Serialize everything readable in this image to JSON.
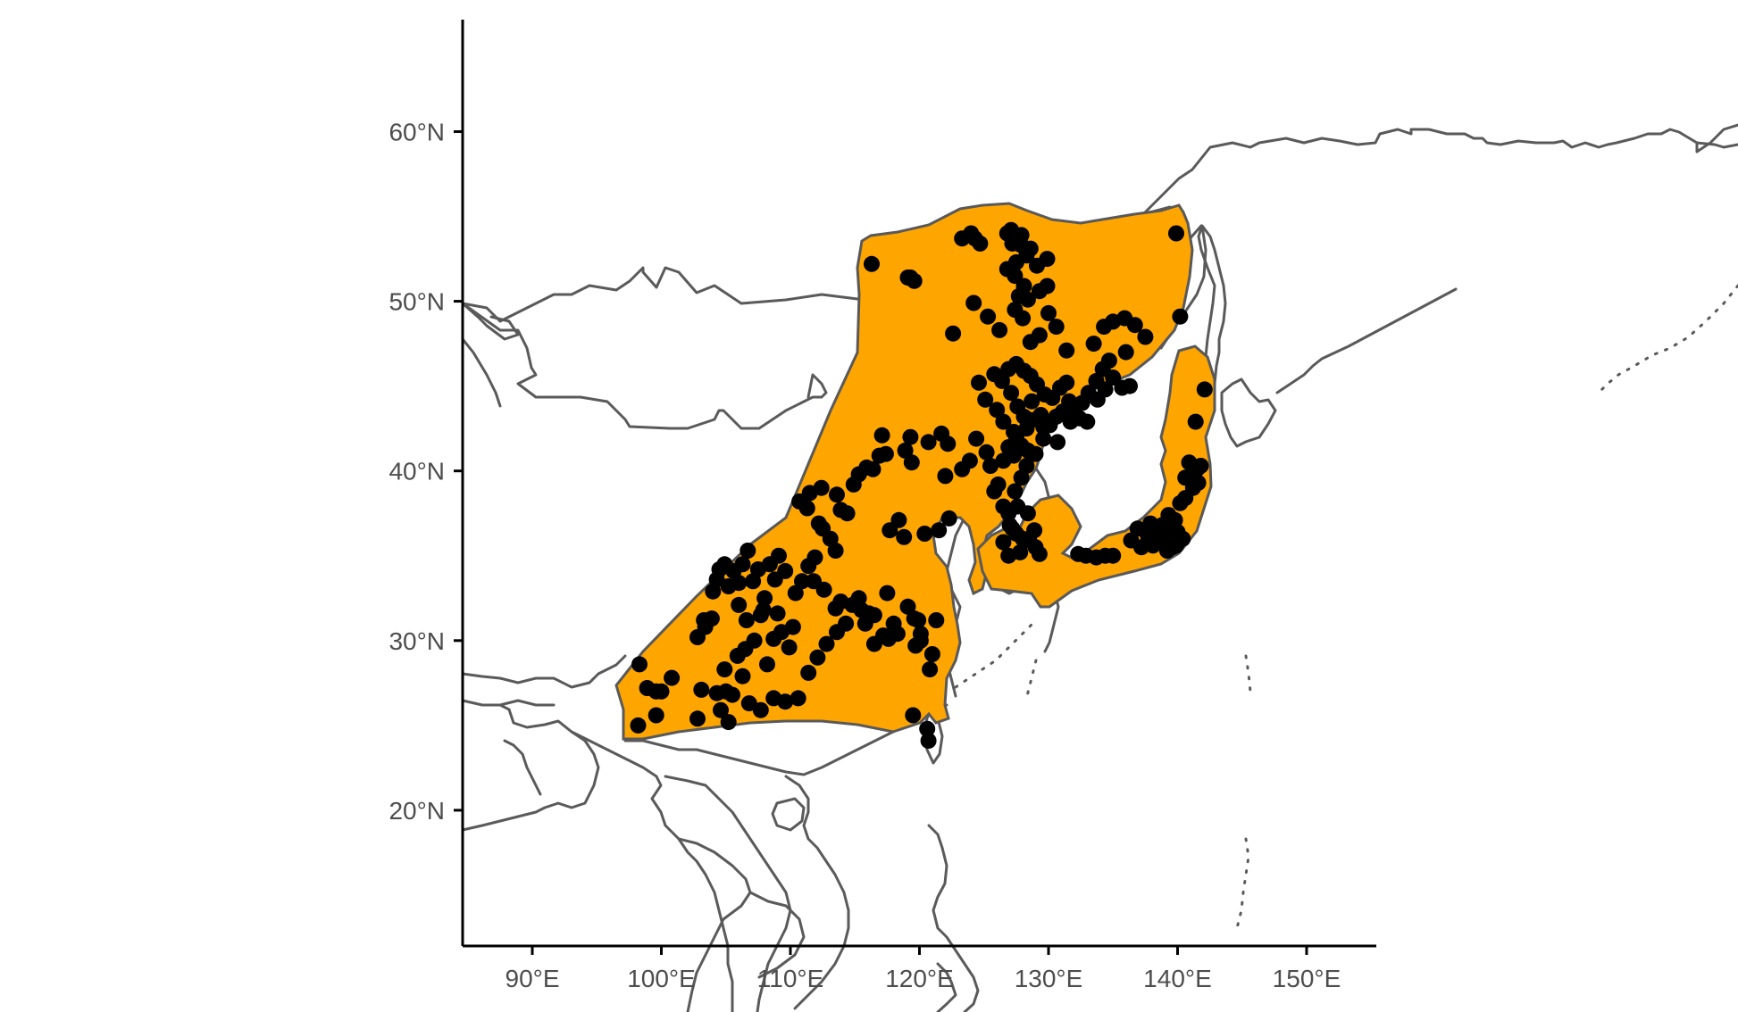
{
  "map": {
    "x_ticks": [
      {
        "lon": 90,
        "label": "90°E"
      },
      {
        "lon": 100,
        "label": "100°E"
      },
      {
        "lon": 110,
        "label": "110°E"
      },
      {
        "lon": 120,
        "label": "120°E"
      },
      {
        "lon": 130,
        "label": "130°E"
      },
      {
        "lon": 140,
        "label": "140°E"
      },
      {
        "lon": 150,
        "label": "150°E"
      }
    ],
    "y_ticks": [
      {
        "lat": 20,
        "label": "20°N"
      },
      {
        "lat": 30,
        "label": "30°N"
      },
      {
        "lat": 40,
        "label": "40°N"
      },
      {
        "lat": 50,
        "label": "50°N"
      },
      {
        "lat": 60,
        "label": "60°N"
      }
    ],
    "lon_range": [
      84.6,
      155.4
    ],
    "lat_range": [
      12,
      66.6
    ],
    "colors": {
      "range_fill": "#FFA500",
      "range_outline": "#595959",
      "points": "#000000",
      "borders": "#595959"
    },
    "occurrence_points": [
      [
        98.2,
        25.0
      ],
      [
        98.3,
        28.6
      ],
      [
        99.6,
        25.6
      ],
      [
        98.9,
        27.2
      ],
      [
        100.0,
        27.0
      ],
      [
        100.8,
        27.8
      ],
      [
        99.6,
        27.0
      ],
      [
        102.8,
        25.4
      ],
      [
        103.1,
        27.1
      ],
      [
        103.4,
        30.8
      ],
      [
        104.3,
        26.9
      ],
      [
        104.6,
        25.9
      ],
      [
        105.0,
        27.0
      ],
      [
        105.2,
        25.2
      ],
      [
        105.5,
        26.8
      ],
      [
        104.9,
        28.3
      ],
      [
        103.9,
        31.3
      ],
      [
        103.3,
        31.2
      ],
      [
        102.8,
        30.2
      ],
      [
        104.0,
        32.9
      ],
      [
        104.3,
        33.6
      ],
      [
        104.5,
        34.2
      ],
      [
        104.9,
        34.5
      ],
      [
        105.2,
        33.2
      ],
      [
        105.6,
        34.1
      ],
      [
        106.0,
        33.4
      ],
      [
        106.3,
        34.5
      ],
      [
        106.7,
        35.3
      ],
      [
        107.1,
        33.5
      ],
      [
        107.5,
        34.2
      ],
      [
        108.0,
        32.5
      ],
      [
        108.4,
        34.5
      ],
      [
        108.8,
        33.6
      ],
      [
        109.1,
        35.0
      ],
      [
        109.6,
        34.1
      ],
      [
        106.0,
        32.1
      ],
      [
        106.6,
        31.2
      ],
      [
        107.2,
        30.0
      ],
      [
        107.7,
        31.5
      ],
      [
        108.2,
        28.6
      ],
      [
        108.7,
        30.1
      ],
      [
        109.3,
        30.5
      ],
      [
        109.9,
        29.6
      ],
      [
        110.2,
        30.8
      ],
      [
        110.9,
        33.5
      ],
      [
        111.4,
        34.4
      ],
      [
        111.9,
        34.9
      ],
      [
        112.5,
        36.6
      ],
      [
        113.1,
        36.0
      ],
      [
        113.5,
        35.3
      ],
      [
        112.2,
        36.9
      ],
      [
        111.3,
        37.8
      ],
      [
        110.7,
        38.2
      ],
      [
        111.5,
        38.7
      ],
      [
        112.4,
        39.0
      ],
      [
        113.6,
        38.6
      ],
      [
        113.9,
        37.7
      ],
      [
        114.4,
        37.5
      ],
      [
        114.9,
        39.2
      ],
      [
        115.3,
        39.8
      ],
      [
        115.9,
        40.2
      ],
      [
        116.4,
        40.1
      ],
      [
        116.9,
        40.9
      ],
      [
        117.4,
        41.0
      ],
      [
        117.1,
        42.1
      ],
      [
        118.9,
        41.2
      ],
      [
        119.4,
        40.5
      ],
      [
        119.3,
        42.0
      ],
      [
        121.7,
        42.2
      ],
      [
        122.2,
        41.6
      ],
      [
        118.4,
        37.1
      ],
      [
        117.7,
        36.5
      ],
      [
        118.8,
        36.1
      ],
      [
        117.6,
        30.1
      ],
      [
        118.3,
        30.4
      ],
      [
        119.1,
        32.0
      ],
      [
        119.6,
        31.3
      ],
      [
        118.0,
        31.0
      ],
      [
        117.2,
        30.3
      ],
      [
        116.5,
        29.8
      ],
      [
        116.1,
        31.6
      ],
      [
        115.5,
        31.8
      ],
      [
        114.8,
        32.1
      ],
      [
        113.9,
        32.3
      ],
      [
        113.6,
        30.5
      ],
      [
        112.8,
        29.8
      ],
      [
        112.1,
        29.0
      ],
      [
        111.4,
        28.1
      ],
      [
        110.6,
        26.6
      ],
      [
        109.6,
        26.4
      ],
      [
        108.7,
        26.6
      ],
      [
        107.7,
        25.9
      ],
      [
        106.8,
        26.3
      ],
      [
        106.3,
        27.9
      ],
      [
        105.9,
        29.1
      ],
      [
        106.5,
        29.5
      ],
      [
        107.9,
        31.8
      ],
      [
        109.0,
        31.6
      ],
      [
        110.4,
        32.8
      ],
      [
        111.8,
        33.5
      ],
      [
        112.6,
        33.0
      ],
      [
        113.5,
        31.9
      ],
      [
        114.3,
        31.0
      ],
      [
        115.3,
        32.5
      ],
      [
        115.8,
        31.0
      ],
      [
        116.5,
        31.5
      ],
      [
        117.5,
        32.8
      ],
      [
        119.7,
        29.7
      ],
      [
        119.9,
        31.2
      ],
      [
        120.1,
        30.4
      ],
      [
        120.8,
        28.3
      ],
      [
        120.1,
        30.0
      ],
      [
        119.5,
        25.6
      ],
      [
        120.6,
        24.8
      ],
      [
        120.7,
        24.1
      ],
      [
        121.0,
        29.2
      ],
      [
        121.3,
        31.2
      ],
      [
        122.3,
        37.2
      ],
      [
        121.5,
        36.5
      ],
      [
        120.4,
        36.3
      ],
      [
        122.0,
        39.7
      ],
      [
        123.3,
        40.1
      ],
      [
        123.9,
        40.6
      ],
      [
        124.4,
        41.9
      ],
      [
        125.2,
        41.1
      ],
      [
        125.5,
        40.3
      ],
      [
        126.1,
        39.2
      ],
      [
        125.8,
        38.8
      ],
      [
        126.5,
        37.9
      ],
      [
        126.9,
        37.5
      ],
      [
        127.2,
        36.6
      ],
      [
        127.5,
        36.3
      ],
      [
        128.0,
        36.0
      ],
      [
        128.5,
        35.9
      ],
      [
        129.0,
        35.5
      ],
      [
        129.3,
        35.1
      ],
      [
        127.8,
        35.2
      ],
      [
        126.9,
        35.0
      ],
      [
        126.5,
        35.8
      ],
      [
        127.0,
        36.8
      ],
      [
        127.6,
        37.9
      ],
      [
        128.4,
        37.5
      ],
      [
        128.9,
        36.5
      ],
      [
        127.4,
        38.8
      ],
      [
        127.9,
        39.6
      ],
      [
        128.3,
        40.3
      ],
      [
        129.0,
        41.0
      ],
      [
        129.6,
        41.9
      ],
      [
        128.3,
        42.5
      ],
      [
        127.5,
        42.0
      ],
      [
        126.9,
        41.4
      ],
      [
        126.5,
        40.6
      ],
      [
        127.3,
        40.9
      ],
      [
        128.7,
        43.0
      ],
      [
        129.4,
        43.3
      ],
      [
        130.1,
        42.7
      ],
      [
        130.6,
        43.2
      ],
      [
        131.1,
        43.5
      ],
      [
        131.6,
        44.1
      ],
      [
        132.0,
        43.4
      ],
      [
        132.6,
        44.0
      ],
      [
        133.1,
        44.6
      ],
      [
        133.7,
        45.3
      ],
      [
        134.2,
        46.0
      ],
      [
        134.7,
        46.5
      ],
      [
        131.4,
        45.2
      ],
      [
        130.9,
        44.9
      ],
      [
        130.3,
        44.3
      ],
      [
        129.7,
        44.5
      ],
      [
        129.1,
        45.1
      ],
      [
        128.6,
        45.6
      ],
      [
        128.1,
        45.9
      ],
      [
        127.5,
        46.3
      ],
      [
        126.9,
        46.0
      ],
      [
        126.4,
        45.3
      ],
      [
        127.1,
        44.6
      ],
      [
        127.6,
        43.8
      ],
      [
        128.1,
        43.2
      ],
      [
        128.7,
        44.1
      ],
      [
        129.6,
        42.6
      ],
      [
        130.7,
        41.7
      ],
      [
        131.7,
        42.9
      ],
      [
        132.4,
        43.1
      ],
      [
        133.0,
        42.9
      ],
      [
        133.8,
        44.2
      ],
      [
        134.4,
        44.8
      ],
      [
        135.0,
        45.5
      ],
      [
        135.7,
        44.9
      ],
      [
        136.3,
        45.0
      ],
      [
        133.5,
        47.5
      ],
      [
        134.3,
        48.5
      ],
      [
        135.0,
        48.8
      ],
      [
        135.9,
        49.0
      ],
      [
        136.7,
        48.6
      ],
      [
        137.5,
        47.9
      ],
      [
        136.0,
        47.0
      ],
      [
        131.4,
        47.1
      ],
      [
        130.6,
        48.5
      ],
      [
        130.0,
        49.3
      ],
      [
        129.3,
        48.0
      ],
      [
        128.6,
        47.6
      ],
      [
        128.0,
        49.0
      ],
      [
        127.4,
        49.5
      ],
      [
        127.7,
        50.3
      ],
      [
        128.4,
        50.1
      ],
      [
        129.3,
        50.6
      ],
      [
        129.9,
        50.9
      ],
      [
        128.1,
        50.9
      ],
      [
        127.4,
        51.5
      ],
      [
        126.8,
        51.9
      ],
      [
        127.5,
        52.3
      ],
      [
        128.3,
        52.7
      ],
      [
        129.1,
        52.1
      ],
      [
        129.9,
        52.5
      ],
      [
        128.6,
        53.1
      ],
      [
        127.9,
        53.3
      ],
      [
        127.2,
        53.4
      ],
      [
        126.8,
        54.0
      ],
      [
        127.1,
        54.2
      ],
      [
        127.9,
        53.9
      ],
      [
        124.3,
        53.7
      ],
      [
        124.7,
        53.4
      ],
      [
        124.0,
        54.0
      ],
      [
        123.3,
        53.7
      ],
      [
        122.6,
        48.1
      ],
      [
        124.2,
        49.9
      ],
      [
        125.3,
        49.1
      ],
      [
        126.2,
        48.3
      ],
      [
        125.8,
        45.7
      ],
      [
        124.6,
        45.2
      ],
      [
        125.1,
        44.2
      ],
      [
        126.0,
        43.6
      ],
      [
        126.5,
        42.9
      ],
      [
        127.3,
        42.3
      ],
      [
        127.9,
        41.5
      ],
      [
        128.4,
        41.2
      ],
      [
        120.7,
        41.7
      ],
      [
        119.3,
        51.4
      ],
      [
        119.6,
        51.2
      ],
      [
        116.3,
        52.2
      ],
      [
        119.1,
        51.4
      ],
      [
        139.9,
        54.0
      ],
      [
        140.2,
        49.1
      ],
      [
        142.1,
        44.8
      ],
      [
        141.4,
        42.9
      ],
      [
        140.9,
        40.5
      ],
      [
        141.5,
        40.1
      ],
      [
        141.2,
        39.0
      ],
      [
        140.6,
        39.6
      ],
      [
        141.8,
        40.3
      ],
      [
        141.6,
        39.3
      ],
      [
        140.6,
        38.4
      ],
      [
        140.2,
        38.1
      ],
      [
        139.8,
        37.1
      ],
      [
        139.4,
        36.7
      ],
      [
        139.0,
        36.1
      ],
      [
        138.6,
        35.9
      ],
      [
        138.1,
        35.6
      ],
      [
        137.7,
        36.2
      ],
      [
        137.2,
        35.5
      ],
      [
        136.9,
        36.6
      ],
      [
        136.4,
        35.9
      ],
      [
        139.6,
        35.5
      ],
      [
        140.0,
        36.4
      ],
      [
        139.2,
        35.3
      ],
      [
        140.4,
        36.0
      ],
      [
        138.3,
        36.6
      ],
      [
        139.9,
        35.6
      ],
      [
        135.0,
        35.0
      ],
      [
        133.7,
        34.9
      ],
      [
        132.9,
        35.0
      ],
      [
        132.3,
        35.1
      ],
      [
        134.4,
        35.0
      ],
      [
        137.9,
        36.9
      ],
      [
        138.8,
        36.8
      ],
      [
        139.3,
        37.4
      ]
    ]
  }
}
